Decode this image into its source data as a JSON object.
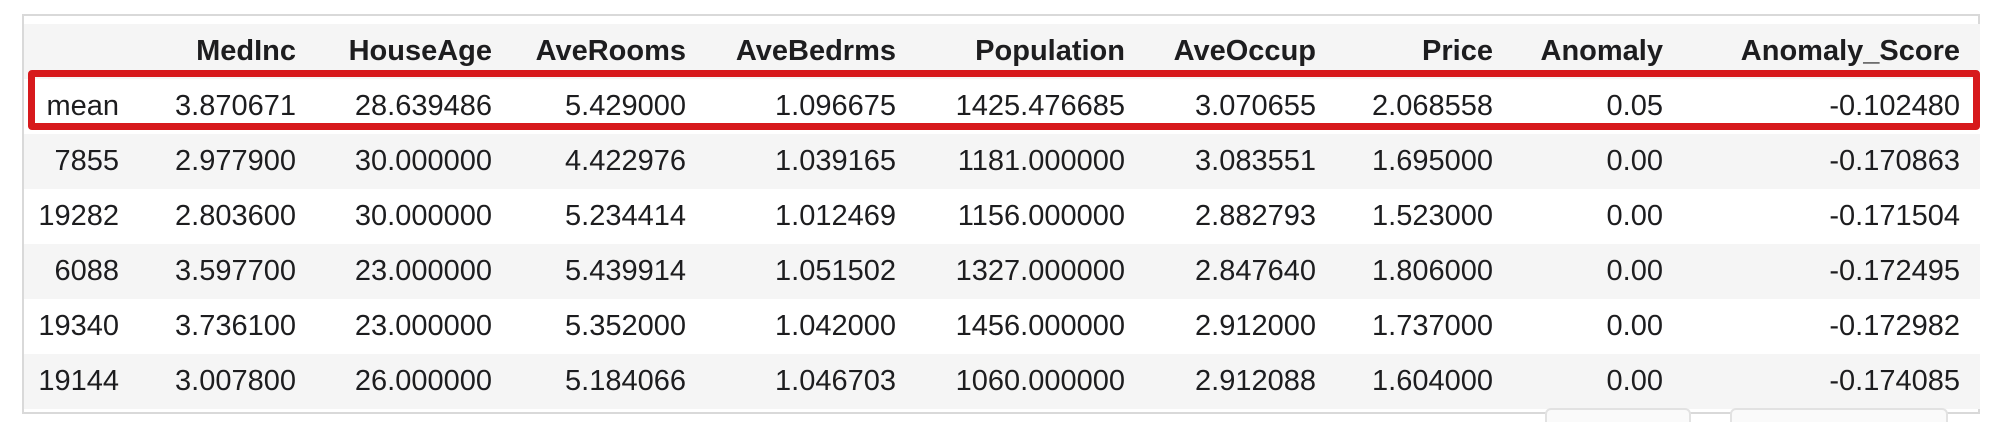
{
  "table": {
    "index_header": "",
    "columns": [
      "MedInc",
      "HouseAge",
      "AveRooms",
      "AveBedrms",
      "Population",
      "AveOccup",
      "Price",
      "Anomaly",
      "Anomaly_Score"
    ],
    "rows": [
      {
        "index": "mean",
        "highlighted": true,
        "cells": [
          "3.870671",
          "28.639486",
          "5.429000",
          "1.096675",
          "1425.476685",
          "3.070655",
          "2.068558",
          "0.05",
          "-0.102480"
        ]
      },
      {
        "index": "7855",
        "highlighted": false,
        "cells": [
          "2.977900",
          "30.000000",
          "4.422976",
          "1.039165",
          "1181.000000",
          "3.083551",
          "1.695000",
          "0.00",
          "-0.170863"
        ]
      },
      {
        "index": "19282",
        "highlighted": false,
        "cells": [
          "2.803600",
          "30.000000",
          "5.234414",
          "1.012469",
          "1156.000000",
          "2.882793",
          "1.523000",
          "0.00",
          "-0.171504"
        ]
      },
      {
        "index": "6088",
        "highlighted": false,
        "cells": [
          "3.597700",
          "23.000000",
          "5.439914",
          "1.051502",
          "1327.000000",
          "2.847640",
          "1.806000",
          "0.00",
          "-0.172495"
        ]
      },
      {
        "index": "19340",
        "highlighted": false,
        "cells": [
          "3.736100",
          "23.000000",
          "5.352000",
          "1.042000",
          "1456.000000",
          "2.912000",
          "1.737000",
          "0.00",
          "-0.172982"
        ]
      },
      {
        "index": "19144",
        "highlighted": false,
        "cells": [
          "3.007800",
          "26.000000",
          "5.184066",
          "1.046703",
          "1060.000000",
          "2.912088",
          "1.604000",
          "0.00",
          "-0.174085"
        ]
      }
    ]
  },
  "highlight_color": "#d7191c",
  "stripe_color": "#f5f5f5"
}
